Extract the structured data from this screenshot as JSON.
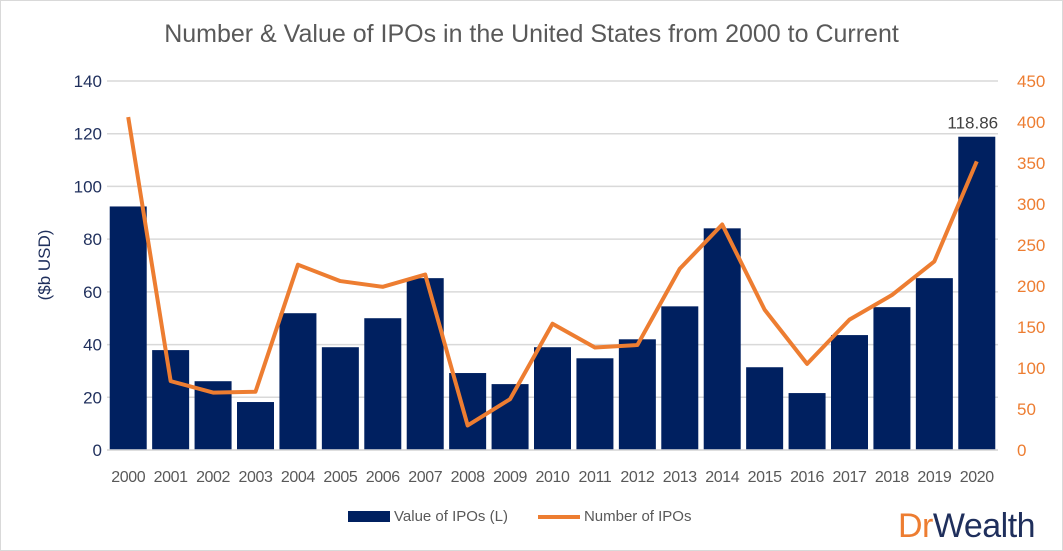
{
  "chart_data": {
    "type": "bar+line",
    "title": "Number & Value of IPOs in the United States from 2000 to Current",
    "ylabel": "($b USD)",
    "y2label": "",
    "xlabel": "",
    "categories": [
      "2000",
      "2001",
      "2002",
      "2003",
      "2004",
      "2005",
      "2006",
      "2007",
      "2008",
      "2009",
      "2010",
      "2011",
      "2012",
      "2013",
      "2014",
      "2015",
      "2016",
      "2017",
      "2018",
      "2019",
      "2020"
    ],
    "series": [
      {
        "name": "Value of IPOs (L)",
        "type": "bar",
        "axis": "left",
        "color": "#002060",
        "values": [
          92.4,
          37.9,
          26.1,
          18.2,
          51.9,
          39.0,
          50.0,
          65.2,
          29.2,
          25.0,
          39.0,
          34.8,
          42.0,
          54.5,
          84.1,
          31.4,
          21.6,
          43.6,
          54.2,
          65.2,
          118.86
        ]
      },
      {
        "name": "Number of IPOs",
        "type": "line",
        "axis": "right",
        "color": "#ed7d31",
        "values": [
          406,
          84,
          70,
          71,
          226,
          206,
          199,
          214,
          30,
          62,
          154,
          125,
          128,
          221,
          275,
          171,
          105,
          159,
          189,
          230,
          352
        ]
      }
    ],
    "data_labels": [
      {
        "category": "2020",
        "text": "118.86"
      }
    ],
    "ylim": [
      0,
      140
    ],
    "yticks": [
      "0",
      "20",
      "40",
      "60",
      "80",
      "100",
      "120",
      "140"
    ],
    "y2lim": [
      0,
      450
    ],
    "y2ticks": [
      "0",
      "50",
      "100",
      "150",
      "200",
      "250",
      "300",
      "350",
      "400",
      "450"
    ],
    "grid": true,
    "legend": "bottom"
  },
  "logo": {
    "part1": "Dr",
    "part2": "Wealth"
  }
}
